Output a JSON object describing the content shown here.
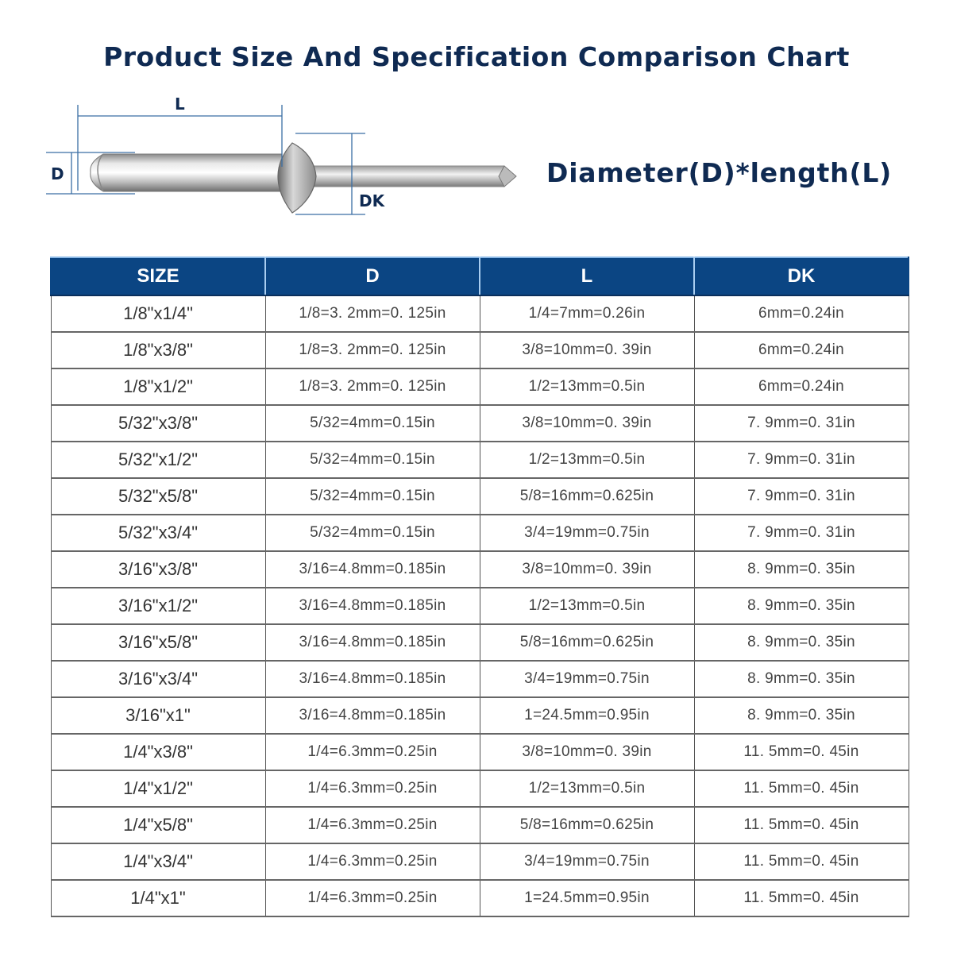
{
  "title": "Product Size And Specification Comparison Chart",
  "diagram": {
    "labels": {
      "length": "L",
      "diameter": "D",
      "head_diameter": "DK"
    },
    "formula": "Diameter(D)*length(L)",
    "dimension_line_color": "#3a6ea5"
  },
  "colors": {
    "title": "#0f2a52",
    "header_bg": "#0b4583",
    "header_text": "#ffffff"
  },
  "table": {
    "headers": [
      "SIZE",
      "D",
      "L",
      "DK"
    ],
    "rows": [
      [
        "1/8\"x1/4\"",
        "1/8=3. 2mm=0. 125in",
        "1/4=7mm=0.26in",
        "6mm=0.24in"
      ],
      [
        "1/8\"x3/8\"",
        "1/8=3. 2mm=0. 125in",
        "3/8=10mm=0. 39in",
        "6mm=0.24in"
      ],
      [
        "1/8\"x1/2\"",
        "1/8=3. 2mm=0. 125in",
        "1/2=13mm=0.5in",
        "6mm=0.24in"
      ],
      [
        "5/32\"x3/8\"",
        "5/32=4mm=0.15in",
        "3/8=10mm=0. 39in",
        "7. 9mm=0. 31in"
      ],
      [
        "5/32\"x1/2\"",
        "5/32=4mm=0.15in",
        "1/2=13mm=0.5in",
        "7. 9mm=0. 31in"
      ],
      [
        "5/32\"x5/8\"",
        "5/32=4mm=0.15in",
        "5/8=16mm=0.625in",
        "7. 9mm=0. 31in"
      ],
      [
        "5/32\"x3/4\"",
        "5/32=4mm=0.15in",
        "3/4=19mm=0.75in",
        "7. 9mm=0. 31in"
      ],
      [
        "3/16\"x3/8\"",
        "3/16=4.8mm=0.185in",
        "3/8=10mm=0. 39in",
        "8. 9mm=0. 35in"
      ],
      [
        "3/16\"x1/2\"",
        "3/16=4.8mm=0.185in",
        "1/2=13mm=0.5in",
        "8. 9mm=0. 35in"
      ],
      [
        "3/16\"x5/8\"",
        "3/16=4.8mm=0.185in",
        "5/8=16mm=0.625in",
        "8. 9mm=0. 35in"
      ],
      [
        "3/16\"x3/4\"",
        "3/16=4.8mm=0.185in",
        "3/4=19mm=0.75in",
        "8. 9mm=0. 35in"
      ],
      [
        "3/16\"x1\"",
        "3/16=4.8mm=0.185in",
        "1=24.5mm=0.95in",
        "8. 9mm=0. 35in"
      ],
      [
        "1/4\"x3/8\"",
        "1/4=6.3mm=0.25in",
        "3/8=10mm=0. 39in",
        "11. 5mm=0. 45in"
      ],
      [
        "1/4\"x1/2\"",
        "1/4=6.3mm=0.25in",
        "1/2=13mm=0.5in",
        "11. 5mm=0. 45in"
      ],
      [
        "1/4\"x5/8\"",
        "1/4=6.3mm=0.25in",
        "5/8=16mm=0.625in",
        "11. 5mm=0. 45in"
      ],
      [
        "1/4\"x3/4\"",
        "1/4=6.3mm=0.25in",
        "3/4=19mm=0.75in",
        "11. 5mm=0. 45in"
      ],
      [
        "1/4\"x1\"",
        "1/4=6.3mm=0.25in",
        "1=24.5mm=0.95in",
        "11. 5mm=0. 45in"
      ]
    ]
  }
}
